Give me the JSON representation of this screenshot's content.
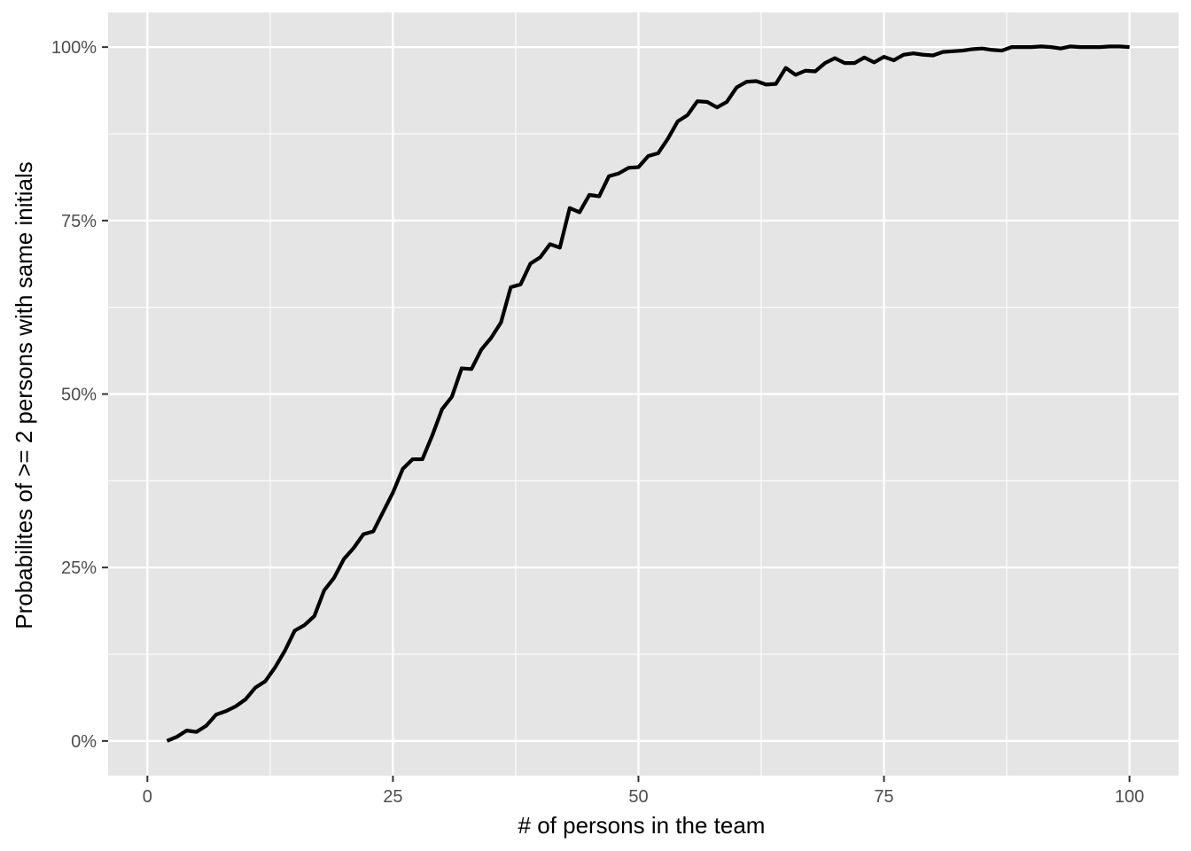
{
  "chart_data": {
    "type": "line",
    "title": "",
    "xlabel": "# of persons in the team",
    "ylabel": "Probabilites of >= 2 persons with same initials",
    "xlim": [
      -4,
      105
    ],
    "ylim": [
      -0.05,
      1.05
    ],
    "x_ticks": [
      0,
      25,
      50,
      75,
      100
    ],
    "x_tick_labels": [
      "0",
      "25",
      "50",
      "75",
      "100"
    ],
    "y_ticks": [
      0,
      0.25,
      0.5,
      0.75,
      1.0
    ],
    "y_tick_labels": [
      "0%",
      "25%",
      "50%",
      "75%",
      "100%"
    ],
    "grid": true,
    "legend": "none",
    "colors": {
      "panel": "#e5e5e5",
      "grid": "#ffffff",
      "line": "#000000",
      "tick_text": "#4d4d4d"
    },
    "series": [
      {
        "x": [
          2,
          3,
          4,
          5,
          6,
          7,
          8,
          9,
          10,
          11,
          12,
          13,
          14,
          15,
          16,
          17,
          18,
          19,
          20,
          21,
          22,
          23,
          24,
          25,
          26,
          27,
          28,
          29,
          30,
          31,
          32,
          33,
          34,
          35,
          36,
          37,
          38,
          39,
          40,
          41,
          42,
          43,
          44,
          45,
          46,
          47,
          48,
          49,
          50,
          51,
          52,
          53,
          54,
          55,
          56,
          57,
          58,
          59,
          60,
          61,
          62,
          63,
          64,
          65,
          66,
          67,
          68,
          69,
          70,
          71,
          72,
          73,
          74,
          75,
          76,
          77,
          78,
          79,
          80,
          81,
          82,
          83,
          84,
          85,
          86,
          87,
          88,
          89,
          90,
          91,
          92,
          93,
          94,
          95,
          96,
          97,
          98,
          99,
          100
        ],
        "y": [
          0.0,
          0.006,
          0.015,
          0.013,
          0.022,
          0.038,
          0.043,
          0.05,
          0.06,
          0.077,
          0.086,
          0.106,
          0.13,
          0.159,
          0.167,
          0.18,
          0.217,
          0.235,
          0.262,
          0.278,
          0.298,
          0.302,
          0.33,
          0.358,
          0.392,
          0.406,
          0.406,
          0.44,
          0.478,
          0.496,
          0.537,
          0.536,
          0.564,
          0.581,
          0.603,
          0.654,
          0.658,
          0.688,
          0.697,
          0.716,
          0.711,
          0.768,
          0.762,
          0.787,
          0.785,
          0.814,
          0.818,
          0.826,
          0.827,
          0.843,
          0.847,
          0.868,
          0.893,
          0.902,
          0.922,
          0.921,
          0.913,
          0.921,
          0.942,
          0.95,
          0.951,
          0.946,
          0.947,
          0.97,
          0.96,
          0.966,
          0.965,
          0.977,
          0.984,
          0.977,
          0.977,
          0.985,
          0.978,
          0.986,
          0.981,
          0.989,
          0.991,
          0.989,
          0.988,
          0.993,
          0.994,
          0.995,
          0.997,
          0.998,
          0.996,
          0.995,
          1.0,
          1.0,
          1.0,
          1.001,
          1.0,
          0.998,
          1.001,
          1.0,
          1.0,
          1.0,
          1.001,
          1.001,
          1.0
        ]
      }
    ]
  }
}
